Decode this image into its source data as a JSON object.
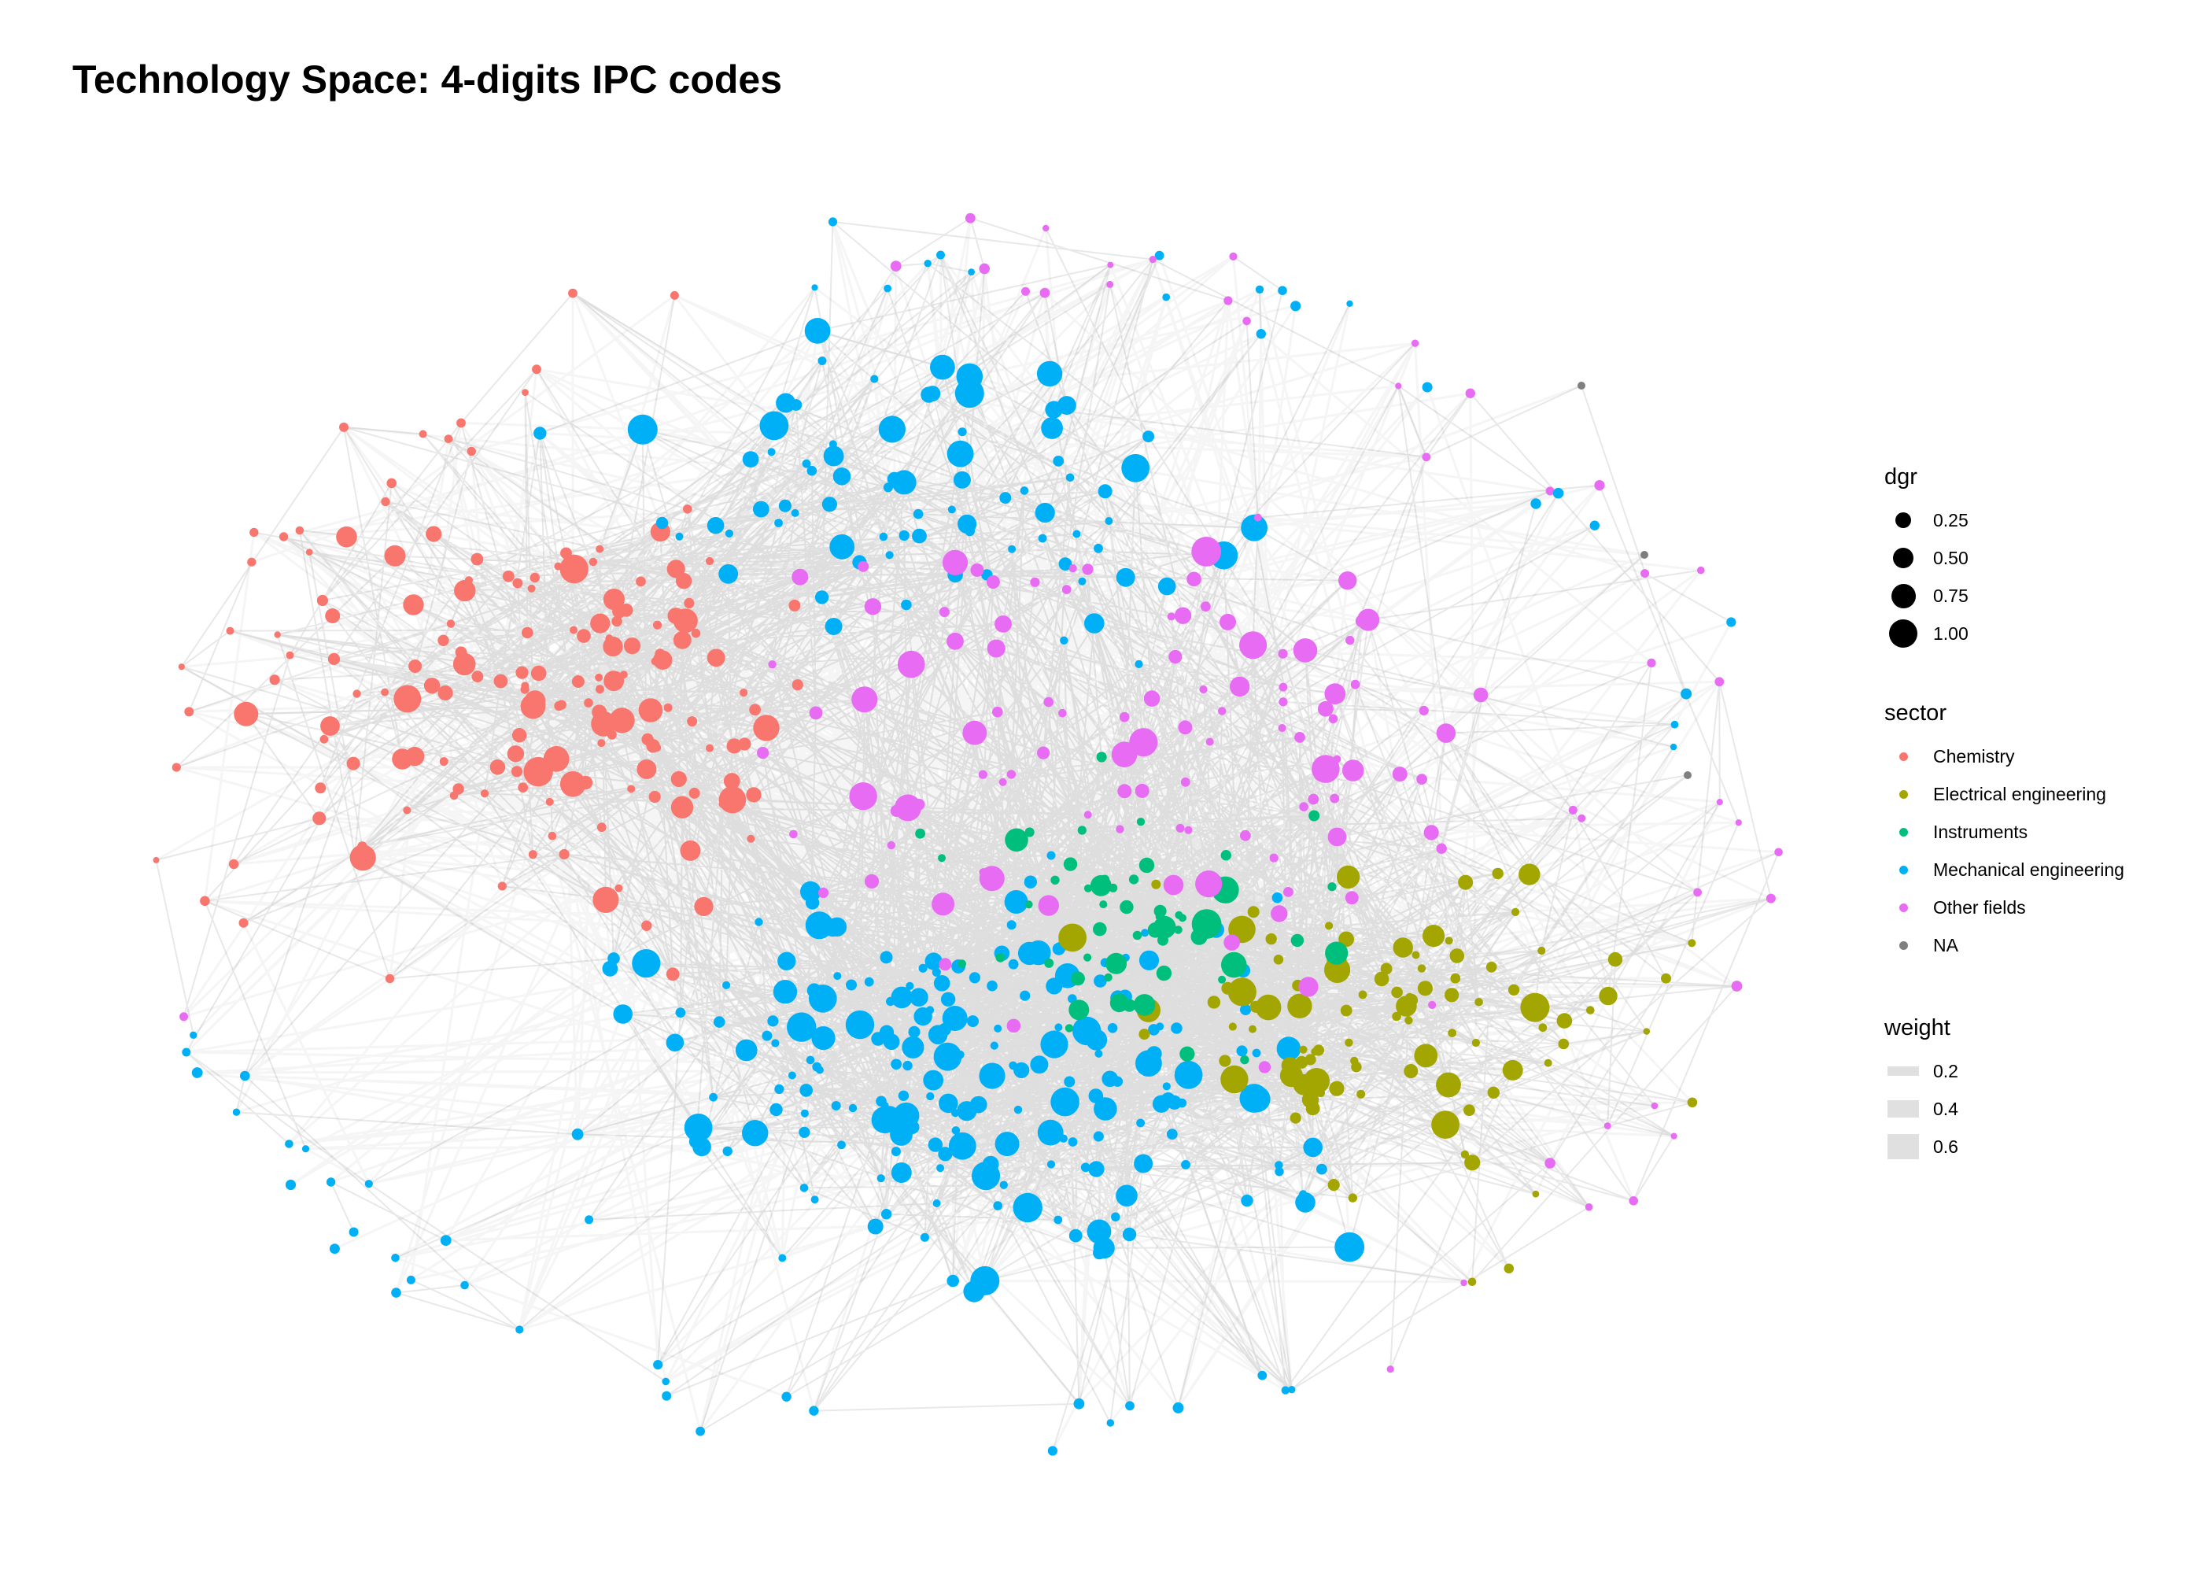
{
  "title": "Technology Space: 4-digits IPC codes",
  "legend": {
    "size": {
      "title": "dgr",
      "items": [
        {
          "label": "0.25",
          "value": 0.25
        },
        {
          "label": "0.50",
          "value": 0.5
        },
        {
          "label": "0.75",
          "value": 0.75
        },
        {
          "label": "1.00",
          "value": 1.0
        }
      ]
    },
    "sector": {
      "title": "sector",
      "items": [
        {
          "label": "Chemistry",
          "color": "#F8766D"
        },
        {
          "label": "Electrical engineering",
          "color": "#A3A500"
        },
        {
          "label": "Instruments",
          "color": "#00BF7D"
        },
        {
          "label": "Mechanical engineering",
          "color": "#00B0F6"
        },
        {
          "label": "Other fields",
          "color": "#E76BF3"
        },
        {
          "label": "NA",
          "color": "#7F7F7F"
        }
      ]
    },
    "weight": {
      "title": "weight",
      "items": [
        {
          "label": "0.2",
          "value": 0.2
        },
        {
          "label": "0.4",
          "value": 0.4
        },
        {
          "label": "0.6",
          "value": 0.6
        }
      ]
    }
  },
  "colors": {
    "edge": "#000000",
    "edge_light": "#c8c8c8",
    "background": "#ffffff"
  }
}
